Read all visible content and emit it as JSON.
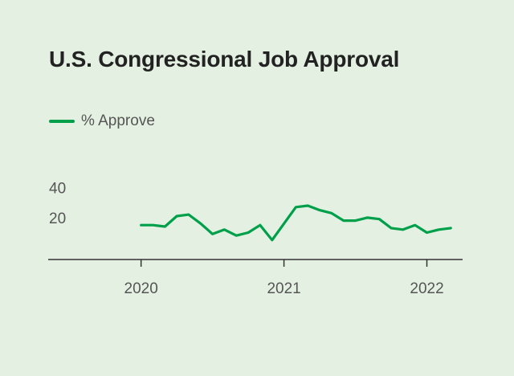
{
  "chart_data": {
    "type": "line",
    "title": "U.S. Congressional Job Approval",
    "xlabel": "",
    "ylabel": "",
    "x_ticks": [
      2020,
      2021,
      2022
    ],
    "xlim": [
      2019.35,
      2022.25
    ],
    "y_ticks": [
      20,
      40
    ],
    "ylim": [
      -8,
      50
    ],
    "grid": false,
    "legend_position": "top-left",
    "series": [
      {
        "name": "% Approve",
        "color": "#00a04a",
        "x": [
          2020.0,
          2020.083,
          2020.167,
          2020.25,
          2020.333,
          2020.417,
          2020.5,
          2020.583,
          2020.667,
          2020.75,
          2020.833,
          2020.917,
          2021.0,
          2021.083,
          2021.167,
          2021.25,
          2021.333,
          2021.417,
          2021.5,
          2021.583,
          2021.667,
          2021.75,
          2021.833,
          2021.917,
          2022.0,
          2022.083,
          2022.167
        ],
        "y": [
          15,
          15,
          14,
          21,
          22,
          16,
          9,
          12,
          8,
          10,
          15,
          5,
          16,
          27,
          28,
          25,
          23,
          18,
          18,
          20,
          19,
          13,
          12,
          15,
          10,
          12,
          13
        ]
      }
    ]
  }
}
